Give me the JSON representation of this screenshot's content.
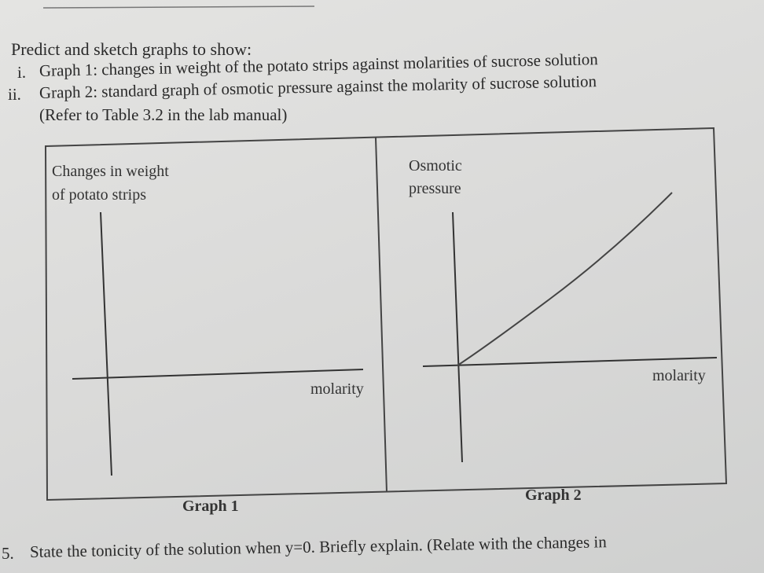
{
  "instructions": {
    "heading": "Predict and sketch graphs to show:",
    "items": [
      {
        "label": "i.",
        "text": "Graph 1: changes in weight of the potato strips against molarities of sucrose solution"
      },
      {
        "label": "ii.",
        "text": "Graph 2: standard graph of osmotic pressure against the molarity of sucrose solution"
      }
    ],
    "note": "(Refer to Table 3.2 in the lab manual)"
  },
  "graphs": [
    {
      "y_label_lines": [
        "Changes in weight",
        "of potato strips"
      ],
      "x_label": "molarity",
      "caption": "Graph 1"
    },
    {
      "y_label_lines": [
        "Osmotic",
        "pressure"
      ],
      "x_label": "molarity",
      "caption": "Graph 2"
    }
  ],
  "question": {
    "number": "5.",
    "text": "State the tonicity of the solution when y=0. Briefly explain. (Relate with the changes in"
  }
}
